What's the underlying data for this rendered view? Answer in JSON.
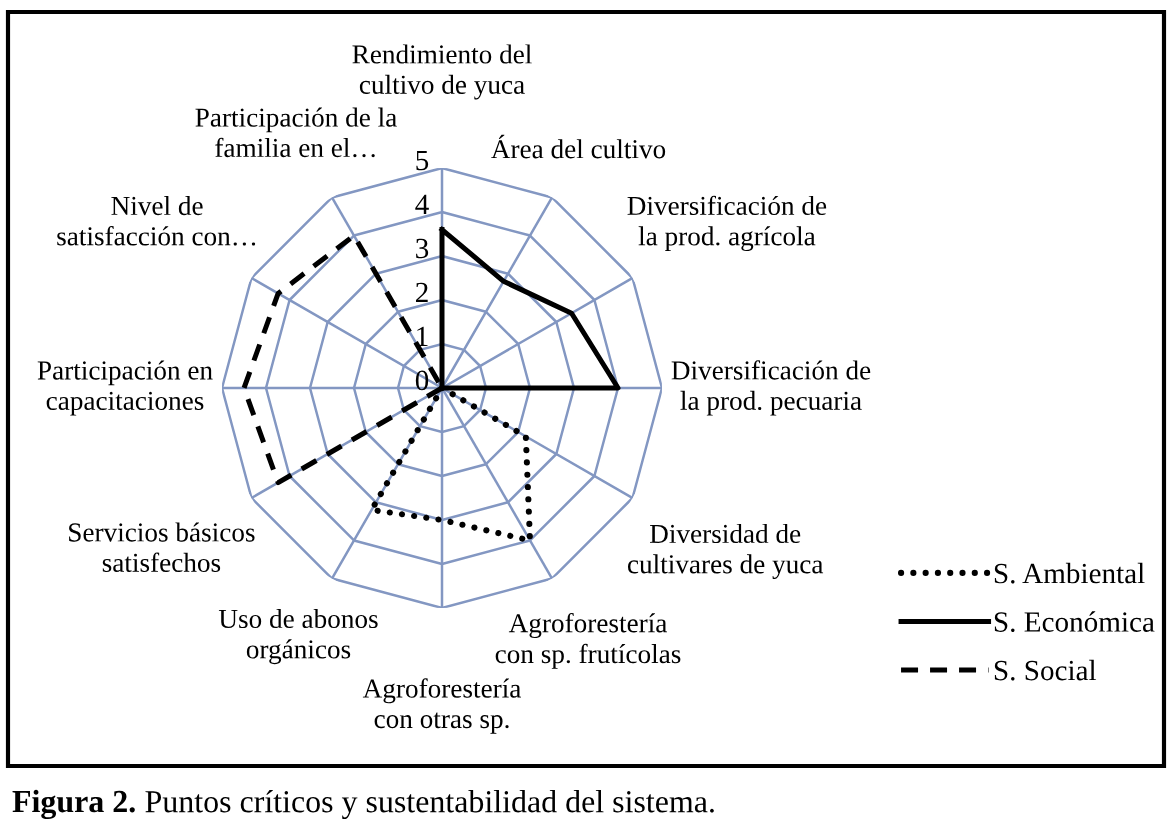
{
  "chart_data": {
    "type": "radar",
    "categories": [
      "Rendimiento del\ncultivo de yuca",
      "Área del cultivo",
      "Diversificación de\nla prod. agrícola",
      "Diversificación de\nla prod. pecuaria",
      "Diversidad de\ncultivares de yuca",
      "Agroforestería\ncon sp. frutícolas",
      "Agroforestería\ncon otras sp.",
      "Uso de abonos\norgánicos",
      "Servicios básicos\nsatisfechos",
      "Participación en\ncapacitaciones",
      "Nivel de\nsatisfacción con…",
      "Participación de la\nfamilia en el…"
    ],
    "series": [
      {
        "name": "S. Ambiental",
        "color": "#000000",
        "line_style": "dotted",
        "values": [
          0,
          0,
          0,
          0,
          2.2,
          4.0,
          3.0,
          3.2,
          0,
          0,
          0,
          0
        ]
      },
      {
        "name": "S. Económica",
        "color": "#000000",
        "line_style": "solid",
        "values": [
          3.6,
          2.8,
          3.4,
          4.0,
          0,
          0,
          0,
          0,
          0,
          0,
          0,
          0
        ]
      },
      {
        "name": "S. Social",
        "color": "#000000",
        "line_style": "dashed",
        "values": [
          0,
          0,
          0,
          0,
          0,
          0,
          0,
          0,
          4.3,
          4.5,
          4.3,
          4.0
        ]
      }
    ],
    "ylim": [
      0,
      5
    ],
    "yticks": [
      0,
      1,
      2,
      3,
      4,
      5
    ],
    "grid": true,
    "legend": "bottom right",
    "annotations": [
      "Figura 2.",
      "Puntos críticos y sustentabilidad del sistema."
    ]
  }
}
